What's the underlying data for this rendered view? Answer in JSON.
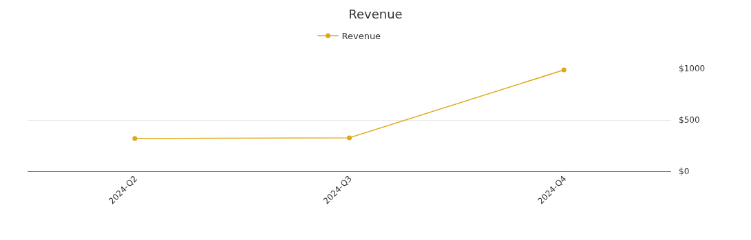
{
  "chart_data": {
    "type": "line",
    "title": "Revenue",
    "categories": [
      "2024-Q2",
      "2024-Q3",
      "2024-Q4"
    ],
    "series": [
      {
        "name": "Revenue",
        "color": "#e0a814",
        "values": [
          320,
          327,
          987
        ]
      }
    ],
    "ylim": [
      0,
      1000
    ],
    "yticks": [
      {
        "value": 0,
        "label": "$0"
      },
      {
        "value": 500,
        "label": "$500"
      },
      {
        "value": 1000,
        "label": "$1000"
      }
    ],
    "grid": "y",
    "legend": "top",
    "marker": "circle",
    "line_style": "solid"
  }
}
